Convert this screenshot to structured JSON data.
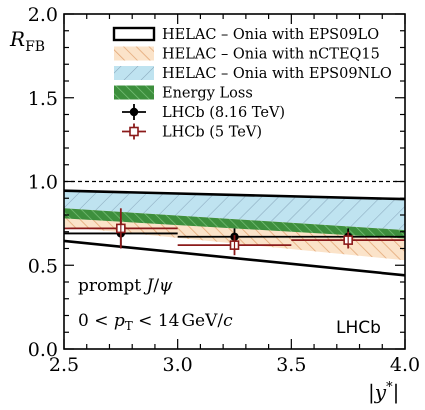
{
  "chart_data": {
    "type": "band",
    "xlabel": "|y*|",
    "ylabel": "R_FB",
    "xlim": [
      2.5,
      4.0
    ],
    "ylim": [
      0.0,
      2.0
    ],
    "x_ticks": [
      "2.5",
      "3.0",
      "3.5",
      "4.0"
    ],
    "y_ticks": [
      "0.0",
      "0.5",
      "1.0",
      "1.5",
      "2.0"
    ],
    "x_tick_values": [
      2.5,
      3.0,
      3.5,
      4.0
    ],
    "y_tick_values": [
      0.0,
      0.5,
      1.0,
      1.5,
      2.0
    ],
    "reference_line": 1.0,
    "bands": [
      {
        "name": "HELAC – Onia with EPS09LO",
        "style": "outline",
        "color": "#000000",
        "x": [
          2.5,
          4.0
        ],
        "upper": [
          0.945,
          0.895
        ],
        "lower": [
          0.645,
          0.44
        ]
      },
      {
        "name": "HELAC – Onia with nCTEQ15",
        "style": "hatch",
        "color": "#f5c99a",
        "x": [
          2.5,
          4.0
        ],
        "upper": [
          0.9,
          0.76
        ],
        "lower": [
          0.73,
          0.53
        ]
      },
      {
        "name": "HELAC – Onia with EPS09NLO",
        "style": "hatch",
        "color": "#add8e6",
        "x": [
          2.5,
          4.0
        ],
        "upper": [
          0.94,
          0.9
        ],
        "lower": [
          0.84,
          0.71
        ]
      },
      {
        "name": "Energy Loss",
        "style": "hatch",
        "color": "#4a9c4a",
        "x": [
          2.5,
          4.0
        ],
        "upper": [
          0.84,
          0.71
        ],
        "lower": [
          0.78,
          0.66
        ]
      }
    ],
    "series": [
      {
        "name": "LHCb (8.16 TeV)",
        "marker": "circle",
        "color": "#000000",
        "x": [
          2.75,
          3.25,
          3.75
        ],
        "xerr": [
          0.25,
          0.25,
          0.25
        ],
        "y": [
          0.69,
          0.67,
          0.67
        ],
        "yerr_stat": [
          0.03,
          0.02,
          0.02
        ],
        "yerr_total": [
          0.08,
          0.05,
          0.05
        ]
      },
      {
        "name": "LHCb (5 TeV)",
        "marker": "open-square",
        "color": "#8b1a1a",
        "x": [
          2.75,
          3.25,
          3.75
        ],
        "xerr": [
          0.25,
          0.25,
          0.25
        ],
        "y": [
          0.72,
          0.62,
          0.65
        ],
        "yerr_stat": [
          0.04,
          0.04,
          0.03
        ],
        "yerr_total": [
          0.12,
          0.06,
          0.05
        ]
      }
    ],
    "legend_placement": "top-right",
    "annotations": [
      "prompt J/ψ",
      "0 < pT < 14 GeV/c",
      "LHCb"
    ]
  }
}
